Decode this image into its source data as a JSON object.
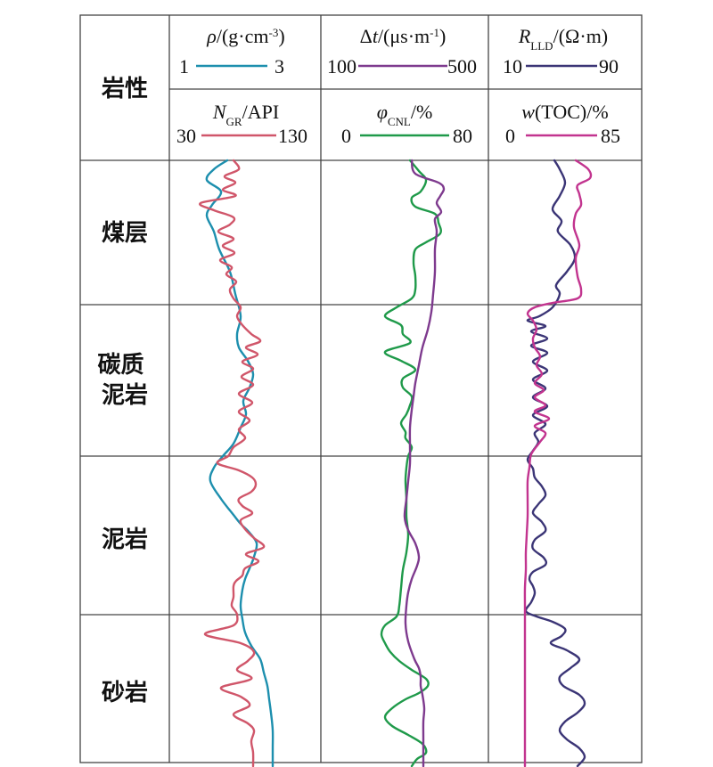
{
  "header": {
    "lithology": "岩性",
    "track1": {
      "top": {
        "label": "ρ/(g·cm⁻³)",
        "min": "1",
        "max": "3",
        "color": "#1d8fae"
      },
      "bottom": {
        "label": "N_GR/API",
        "min": "30",
        "max": "130",
        "color": "#d0566a"
      }
    },
    "track2": {
      "top": {
        "label": "Δt/(μs·m⁻¹)",
        "min": "100",
        "max": "500",
        "color": "#7e3a8e"
      },
      "bottom": {
        "label": "φ_CNL/%",
        "min": "0",
        "max": "80",
        "color": "#1f9a4a"
      }
    },
    "track3": {
      "top": {
        "label": "R_LLD/(Ω·m)",
        "min": "10",
        "max": "90",
        "color": "#3b3576"
      },
      "bottom": {
        "label": "w(TOC)/%",
        "min": "0",
        "max": "85",
        "color": "#c2348f"
      }
    }
  },
  "rows": [
    {
      "name": "煤层"
    },
    {
      "name": "碳质\n泥岩"
    },
    {
      "name": "泥岩"
    },
    {
      "name": "砂岩"
    }
  ],
  "curves": {
    "rho": [
      [
        0,
        255
      ],
      [
        10,
        240
      ],
      [
        22,
        232
      ],
      [
        35,
        248
      ],
      [
        50,
        238
      ],
      [
        62,
        232
      ],
      [
        80,
        240
      ],
      [
        100,
        246
      ],
      [
        125,
        258
      ],
      [
        150,
        264
      ],
      [
        175,
        270
      ],
      [
        195,
        266
      ],
      [
        210,
        268
      ],
      [
        225,
        278
      ],
      [
        240,
        284
      ],
      [
        255,
        280
      ],
      [
        270,
        273
      ],
      [
        285,
        276
      ],
      [
        300,
        270
      ],
      [
        318,
        262
      ],
      [
        332,
        250
      ],
      [
        345,
        240
      ],
      [
        360,
        236
      ],
      [
        380,
        248
      ],
      [
        398,
        262
      ],
      [
        408,
        270
      ],
      [
        418,
        280
      ],
      [
        430,
        288
      ],
      [
        445,
        285
      ],
      [
        458,
        280
      ],
      [
        470,
        275
      ],
      [
        482,
        272
      ],
      [
        500,
        270
      ],
      [
        515,
        272
      ],
      [
        530,
        275
      ],
      [
        545,
        282
      ],
      [
        560,
        292
      ],
      [
        575,
        296
      ],
      [
        590,
        300
      ],
      [
        605,
        302
      ],
      [
        620,
        304
      ],
      [
        640,
        306
      ],
      [
        660,
        306
      ],
      [
        680,
        306
      ]
    ],
    "ngr": [
      [
        0,
        262
      ],
      [
        10,
        268
      ],
      [
        18,
        252
      ],
      [
        25,
        264
      ],
      [
        33,
        250
      ],
      [
        40,
        264
      ],
      [
        48,
        225
      ],
      [
        56,
        240
      ],
      [
        64,
        262
      ],
      [
        72,
        258
      ],
      [
        80,
        245
      ],
      [
        88,
        262
      ],
      [
        96,
        250
      ],
      [
        104,
        263
      ],
      [
        112,
        247
      ],
      [
        120,
        260
      ],
      [
        128,
        254
      ],
      [
        136,
        265
      ],
      [
        145,
        258
      ],
      [
        155,
        262
      ],
      [
        165,
        270
      ],
      [
        175,
        266
      ],
      [
        185,
        272
      ],
      [
        195,
        282
      ],
      [
        203,
        292
      ],
      [
        210,
        276
      ],
      [
        218,
        289
      ],
      [
        226,
        272
      ],
      [
        234,
        284
      ],
      [
        243,
        271
      ],
      [
        252,
        284
      ],
      [
        262,
        268
      ],
      [
        272,
        283
      ],
      [
        282,
        268
      ],
      [
        292,
        280
      ],
      [
        302,
        268
      ],
      [
        312,
        275
      ],
      [
        322,
        262
      ],
      [
        332,
        256
      ],
      [
        340,
        244
      ],
      [
        348,
        268
      ],
      [
        356,
        283
      ],
      [
        364,
        287
      ],
      [
        372,
        282
      ],
      [
        380,
        268
      ],
      [
        388,
        272
      ],
      [
        396,
        283
      ],
      [
        404,
        270
      ],
      [
        414,
        275
      ],
      [
        424,
        285
      ],
      [
        434,
        296
      ],
      [
        442,
        276
      ],
      [
        450,
        290
      ],
      [
        458,
        275
      ],
      [
        466,
        272
      ],
      [
        472,
        265
      ],
      [
        478,
        262
      ],
      [
        490,
        262
      ],
      [
        500,
        260
      ],
      [
        510,
        266
      ],
      [
        522,
        262
      ],
      [
        532,
        230
      ],
      [
        542,
        270
      ],
      [
        552,
        285
      ],
      [
        562,
        278
      ],
      [
        572,
        266
      ],
      [
        582,
        282
      ],
      [
        592,
        248
      ],
      [
        602,
        270
      ],
      [
        612,
        280
      ],
      [
        622,
        262
      ],
      [
        632,
        278
      ],
      [
        640,
        285
      ],
      [
        652,
        282
      ],
      [
        665,
        284
      ],
      [
        680,
        284
      ]
    ],
    "dt": [
      [
        0,
        462
      ],
      [
        15,
        466
      ],
      [
        25,
        492
      ],
      [
        32,
        498
      ],
      [
        40,
        494
      ],
      [
        48,
        490
      ],
      [
        58,
        495
      ],
      [
        66,
        488
      ],
      [
        80,
        490
      ],
      [
        100,
        488
      ],
      [
        125,
        488
      ],
      [
        150,
        486
      ],
      [
        170,
        484
      ],
      [
        190,
        480
      ],
      [
        210,
        474
      ],
      [
        230,
        470
      ],
      [
        250,
        466
      ],
      [
        265,
        464
      ],
      [
        280,
        462
      ],
      [
        300,
        460
      ],
      [
        320,
        460
      ],
      [
        340,
        460
      ],
      [
        360,
        458
      ],
      [
        380,
        456
      ],
      [
        400,
        454
      ],
      [
        415,
        458
      ],
      [
        430,
        466
      ],
      [
        445,
        470
      ],
      [
        455,
        468
      ],
      [
        470,
        462
      ],
      [
        485,
        458
      ],
      [
        500,
        456
      ],
      [
        520,
        455
      ],
      [
        540,
        458
      ],
      [
        560,
        465
      ],
      [
        570,
        470
      ],
      [
        580,
        472
      ],
      [
        590,
        472
      ],
      [
        600,
        474
      ],
      [
        615,
        476
      ],
      [
        630,
        475
      ],
      [
        650,
        475
      ],
      [
        680,
        475
      ]
    ],
    "cnl": [
      [
        0,
        460
      ],
      [
        12,
        470
      ],
      [
        22,
        478
      ],
      [
        35,
        472
      ],
      [
        42,
        462
      ],
      [
        52,
        466
      ],
      [
        60,
        488
      ],
      [
        70,
        492
      ],
      [
        82,
        494
      ],
      [
        92,
        478
      ],
      [
        100,
        466
      ],
      [
        115,
        464
      ],
      [
        130,
        466
      ],
      [
        145,
        466
      ],
      [
        155,
        462
      ],
      [
        165,
        445
      ],
      [
        175,
        432
      ],
      [
        185,
        450
      ],
      [
        195,
        452
      ],
      [
        205,
        460
      ],
      [
        215,
        432
      ],
      [
        225,
        450
      ],
      [
        235,
        466
      ],
      [
        245,
        452
      ],
      [
        255,
        452
      ],
      [
        265,
        462
      ],
      [
        275,
        460
      ],
      [
        285,
        456
      ],
      [
        295,
        450
      ],
      [
        305,
        455
      ],
      [
        312,
        455
      ],
      [
        322,
        462
      ],
      [
        332,
        458
      ],
      [
        345,
        456
      ],
      [
        360,
        455
      ],
      [
        380,
        456
      ],
      [
        400,
        456
      ],
      [
        420,
        458
      ],
      [
        440,
        456
      ],
      [
        460,
        452
      ],
      [
        480,
        450
      ],
      [
        500,
        448
      ],
      [
        512,
        445
      ],
      [
        522,
        432
      ],
      [
        532,
        428
      ],
      [
        542,
        432
      ],
      [
        552,
        438
      ],
      [
        562,
        448
      ],
      [
        572,
        462
      ],
      [
        582,
        478
      ],
      [
        590,
        480
      ],
      [
        598,
        470
      ],
      [
        605,
        455
      ],
      [
        615,
        440
      ],
      [
        625,
        432
      ],
      [
        635,
        440
      ],
      [
        645,
        458
      ],
      [
        655,
        474
      ],
      [
        665,
        478
      ],
      [
        672,
        468
      ],
      [
        680,
        462
      ]
    ],
    "rlld": [
      [
        0,
        622
      ],
      [
        10,
        628
      ],
      [
        25,
        634
      ],
      [
        40,
        628
      ],
      [
        55,
        620
      ],
      [
        68,
        630
      ],
      [
        80,
        626
      ],
      [
        95,
        640
      ],
      [
        110,
        645
      ],
      [
        125,
        636
      ],
      [
        140,
        624
      ],
      [
        150,
        628
      ],
      [
        165,
        620
      ],
      [
        175,
        605
      ],
      [
        180,
        592
      ],
      [
        186,
        612
      ],
      [
        192,
        596
      ],
      [
        200,
        614
      ],
      [
        208,
        596
      ],
      [
        216,
        614
      ],
      [
        226,
        598
      ],
      [
        236,
        614
      ],
      [
        246,
        598
      ],
      [
        256,
        612
      ],
      [
        266,
        598
      ],
      [
        276,
        614
      ],
      [
        286,
        598
      ],
      [
        296,
        612
      ],
      [
        306,
        600
      ],
      [
        316,
        604
      ],
      [
        326,
        598
      ],
      [
        336,
        592
      ],
      [
        346,
        598
      ],
      [
        356,
        600
      ],
      [
        366,
        608
      ],
      [
        376,
        612
      ],
      [
        386,
        604
      ],
      [
        396,
        598
      ],
      [
        406,
        608
      ],
      [
        416,
        612
      ],
      [
        426,
        600
      ],
      [
        436,
        598
      ],
      [
        446,
        610
      ],
      [
        454,
        612
      ],
      [
        462,
        598
      ],
      [
        470,
        594
      ],
      [
        478,
        598
      ],
      [
        486,
        600
      ],
      [
        496,
        596
      ],
      [
        506,
        590
      ],
      [
        512,
        602
      ],
      [
        518,
        620
      ],
      [
        526,
        634
      ],
      [
        534,
        630
      ],
      [
        542,
        618
      ],
      [
        550,
        636
      ],
      [
        560,
        650
      ],
      [
        570,
        640
      ],
      [
        580,
        628
      ],
      [
        590,
        632
      ],
      [
        600,
        650
      ],
      [
        610,
        656
      ],
      [
        620,
        648
      ],
      [
        630,
        634
      ],
      [
        640,
        628
      ],
      [
        650,
        636
      ],
      [
        660,
        650
      ],
      [
        670,
        656
      ],
      [
        680,
        648
      ]
    ],
    "toc": [
      [
        0,
        646
      ],
      [
        10,
        660
      ],
      [
        20,
        662
      ],
      [
        28,
        648
      ],
      [
        38,
        650
      ],
      [
        50,
        652
      ],
      [
        60,
        646
      ],
      [
        75,
        644
      ],
      [
        95,
        650
      ],
      [
        110,
        646
      ],
      [
        130,
        648
      ],
      [
        145,
        652
      ],
      [
        155,
        648
      ],
      [
        160,
        620
      ],
      [
        165,
        600
      ],
      [
        172,
        592
      ],
      [
        180,
        598
      ],
      [
        190,
        602
      ],
      [
        200,
        598
      ],
      [
        210,
        600
      ],
      [
        220,
        606
      ],
      [
        230,
        602
      ],
      [
        240,
        608
      ],
      [
        250,
        600
      ],
      [
        258,
        610
      ],
      [
        266,
        600
      ],
      [
        275,
        612
      ],
      [
        282,
        600
      ],
      [
        290,
        616
      ],
      [
        298,
        600
      ],
      [
        306,
        612
      ],
      [
        316,
        606
      ],
      [
        330,
        596
      ],
      [
        345,
        594
      ],
      [
        360,
        592
      ],
      [
        380,
        592
      ],
      [
        400,
        592
      ],
      [
        420,
        591
      ],
      [
        440,
        590
      ],
      [
        460,
        590
      ],
      [
        480,
        589
      ],
      [
        500,
        589
      ],
      [
        520,
        589
      ],
      [
        540,
        589
      ],
      [
        560,
        589
      ],
      [
        580,
        589
      ],
      [
        600,
        589
      ],
      [
        620,
        589
      ],
      [
        640,
        589
      ],
      [
        660,
        589
      ],
      [
        680,
        589
      ]
    ]
  }
}
